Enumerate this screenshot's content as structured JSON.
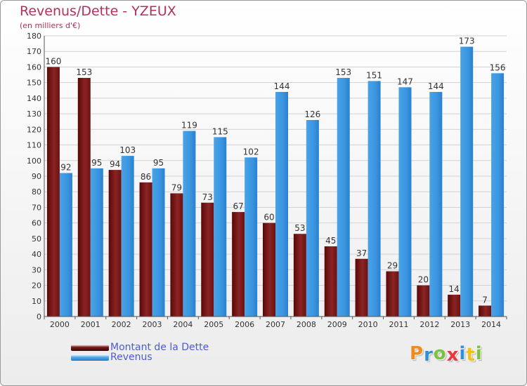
{
  "chart_data": {
    "type": "bar",
    "title": "Revenus/Dette - YZEUX",
    "subtitle": "(en milliers d'€)",
    "categories": [
      "2000",
      "2001",
      "2002",
      "2003",
      "2004",
      "2005",
      "2006",
      "2007",
      "2008",
      "2009",
      "2010",
      "2011",
      "2012",
      "2013",
      "2014"
    ],
    "series": [
      {
        "name": "Montant de la Dette",
        "color": "#7a1a1a",
        "values": [
          160,
          153,
          94,
          86,
          79,
          73,
          67,
          60,
          53,
          45,
          37,
          29,
          20,
          14,
          7
        ]
      },
      {
        "name": "Revenus",
        "color": "#3a95e0",
        "values": [
          92,
          95,
          103,
          95,
          119,
          115,
          102,
          144,
          126,
          153,
          151,
          147,
          144,
          173,
          156
        ]
      }
    ],
    "yticks": [
      0,
      10,
      20,
      30,
      40,
      50,
      60,
      70,
      80,
      90,
      100,
      110,
      120,
      130,
      140,
      150,
      160,
      170,
      180
    ],
    "ylim": [
      0,
      180
    ],
    "grid": true,
    "legend_position": "bottom-left"
  },
  "legend": {
    "debt_label": "Montant de la Dette",
    "revenue_label": "Revenus"
  },
  "brand": {
    "letters": [
      "P",
      "r",
      "o",
      "x",
      "i",
      "t",
      "i"
    ],
    "colors": [
      "#f08a1c",
      "#2f8fd8",
      "#7cc242",
      "#e8383d",
      "#2f8fd8",
      "#f0c01c",
      "#7cc242"
    ]
  }
}
